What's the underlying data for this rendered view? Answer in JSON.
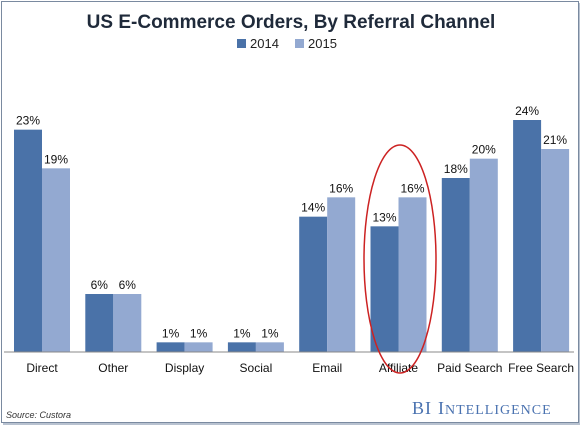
{
  "chart_data": {
    "type": "bar",
    "title": "US E-Commerce Orders, By Referral Channel",
    "categories": [
      "Direct",
      "Other",
      "Display",
      "Social",
      "Email",
      "Affiliate",
      "Paid Search",
      "Free Search"
    ],
    "series": [
      {
        "name": "2014",
        "values": [
          23,
          6,
          1,
          1,
          14,
          13,
          18,
          24
        ],
        "labels": [
          "23%",
          "6%",
          "1%",
          "1%",
          "14%",
          "13%",
          "18%",
          "24%"
        ],
        "color": "#4a72a8"
      },
      {
        "name": "2015",
        "values": [
          19,
          6,
          1,
          1,
          16,
          16,
          20,
          21
        ],
        "labels": [
          "19%",
          "6%",
          "1%",
          "1%",
          "16%",
          "16%",
          "20%",
          "21%"
        ],
        "color": "#93a9d1"
      }
    ],
    "ylim": [
      0,
      25
    ],
    "grid": false,
    "legend": "top-center",
    "highlight": {
      "category": "Affiliate",
      "color": "#cc2222"
    }
  },
  "footer": {
    "source": "Source: Custora",
    "brand_bi": "BI",
    "brand_i": "I",
    "brand_rest": "NTELLIGENCE"
  }
}
